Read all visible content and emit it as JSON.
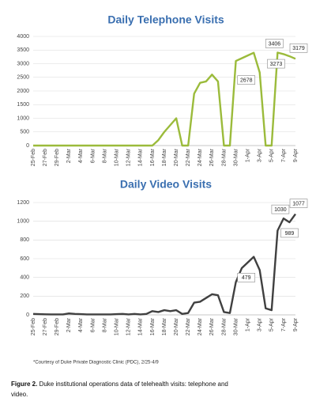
{
  "chart_data": [
    {
      "type": "line",
      "title": "Daily Telephone Visits",
      "categories": [
        "25-Feb",
        null,
        "27-Feb",
        null,
        "29-Feb",
        null,
        "2-Mar",
        null,
        "4-Mar",
        null,
        "6-Mar",
        null,
        "8-Mar",
        null,
        "10-Mar",
        null,
        "12-Mar",
        null,
        "14-Mar",
        null,
        "16-Mar",
        null,
        "18-Mar",
        null,
        "20-Mar",
        null,
        "22-Mar",
        null,
        "24-Mar",
        null,
        "26-Mar",
        null,
        "28-Mar",
        null,
        "30-Mar",
        null,
        "1-Apr",
        null,
        "3-Apr",
        null,
        "5-Apr",
        null,
        "7-Apr",
        null,
        "9-Apr"
      ],
      "series": [
        {
          "name": "Telephone",
          "color": "#9bbb3b",
          "values": [
            0,
            0,
            0,
            0,
            0,
            0,
            0,
            0,
            0,
            0,
            0,
            0,
            0,
            0,
            0,
            0,
            0,
            0,
            0,
            0,
            0,
            200,
            500,
            750,
            1000,
            0,
            0,
            1900,
            2300,
            2350,
            2600,
            2350,
            0,
            0,
            3100,
            3200,
            3300,
            3400,
            2678,
            0,
            0,
            3406,
            3350,
            3273,
            3179
          ],
          "value_labels": [
            null,
            null,
            null,
            null,
            null,
            null,
            null,
            null,
            null,
            null,
            null,
            null,
            null,
            null,
            null,
            null,
            null,
            null,
            null,
            null,
            null,
            null,
            null,
            null,
            null,
            null,
            null,
            null,
            null,
            null,
            null,
            null,
            null,
            null,
            null,
            null,
            null,
            null,
            "2678",
            null,
            null,
            "3406",
            null,
            "3273",
            "3179"
          ]
        }
      ],
      "ylim": [
        0,
        4000
      ],
      "yticks": [
        0,
        500,
        1000,
        1500,
        2000,
        2500,
        3000,
        3500,
        4000
      ],
      "grid": true
    },
    {
      "type": "line",
      "title": "Daily Video Visits",
      "categories": [
        "25-Feb",
        null,
        "27-Feb",
        null,
        "29-Feb",
        null,
        "2-Mar",
        null,
        "4-Mar",
        null,
        "6-Mar",
        null,
        "8-Mar",
        null,
        "10-Mar",
        null,
        "12-Mar",
        null,
        "14-Mar",
        null,
        "16-Mar",
        null,
        "18-Mar",
        null,
        "20-Mar",
        null,
        "22-Mar",
        null,
        "24-Mar",
        null,
        "26-Mar",
        null,
        "28-Mar",
        null,
        "30-Mar",
        null,
        "1-Apr",
        null,
        "3-Apr",
        null,
        "5-Apr",
        null,
        "7-Apr",
        null,
        "9-Apr"
      ],
      "series": [
        {
          "name": "Video",
          "color": "#404040",
          "values": [
            10,
            8,
            6,
            5,
            5,
            5,
            15,
            10,
            8,
            5,
            5,
            5,
            5,
            5,
            8,
            10,
            5,
            10,
            5,
            10,
            40,
            30,
            50,
            40,
            50,
            10,
            20,
            130,
            140,
            180,
            220,
            210,
            30,
            20,
            350,
            500,
            560,
            620,
            479,
            70,
            50,
            900,
            1030,
            989,
            1077
          ],
          "value_labels": [
            null,
            null,
            null,
            null,
            null,
            null,
            null,
            null,
            null,
            null,
            null,
            null,
            null,
            null,
            null,
            null,
            null,
            null,
            null,
            null,
            null,
            null,
            null,
            null,
            null,
            null,
            null,
            null,
            null,
            null,
            null,
            null,
            null,
            null,
            null,
            null,
            null,
            null,
            "479",
            null,
            null,
            null,
            "1030",
            "989",
            "1077"
          ]
        }
      ],
      "ylim": [
        0,
        1200
      ],
      "yticks": [
        0,
        200,
        400,
        600,
        800,
        1000,
        1200
      ],
      "grid": true
    }
  ],
  "footnote": "*Courtesy of Duke Private Diagnostic Clinic (PDC), 2/25-4/9",
  "caption": {
    "label": "Figure 2.",
    "text_line1": "Duke institutional operations data of telehealth visits: telephone and",
    "text_line2": "video."
  }
}
